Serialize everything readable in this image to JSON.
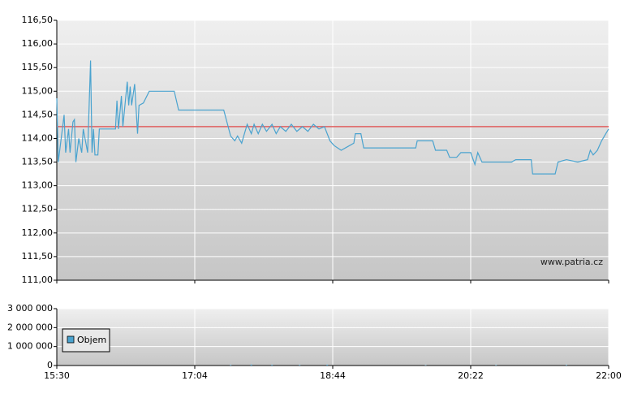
{
  "chart_data": {
    "type": "line",
    "watermark": "www.patria.cz",
    "xlim": [
      "15:30",
      "22:00"
    ],
    "xticks": [
      "15:30",
      "17:04",
      "18:44",
      "20:22",
      "22:00"
    ],
    "ylim": [
      111,
      116.5
    ],
    "yticks": [
      {
        "value": 111,
        "label": "111,00"
      },
      {
        "value": 111.5,
        "label": "111,50"
      },
      {
        "value": 112,
        "label": "112,00"
      },
      {
        "value": 112.5,
        "label": "112,50"
      },
      {
        "value": 113,
        "label": "113,00"
      },
      {
        "value": 113.5,
        "label": "113,50"
      },
      {
        "value": 114,
        "label": "114,00"
      },
      {
        "value": 114.5,
        "label": "114,50"
      },
      {
        "value": 115,
        "label": "115,00"
      },
      {
        "value": 115.5,
        "label": "115,50"
      },
      {
        "value": 116,
        "label": "116,00"
      },
      {
        "value": 116.5,
        "label": "116,50"
      }
    ],
    "grid": true,
    "reference": {
      "value": 114.25,
      "color": "#e06060"
    },
    "series": [
      {
        "color": "#4aa3cf",
        "x": [
          "15:30",
          "15:31",
          "15:33",
          "15:35",
          "15:36",
          "15:38",
          "15:39",
          "15:41",
          "15:42",
          "15:43",
          "15:45",
          "15:47",
          "15:48",
          "15:51",
          "15:53",
          "15:54",
          "15:55",
          "15:56",
          "15:58",
          "15:59",
          "16:10",
          "16:11",
          "16:12",
          "16:14",
          "16:15",
          "16:18",
          "16:19",
          "16:20",
          "16:21",
          "16:23",
          "16:25",
          "16:26",
          "16:29",
          "16:33",
          "16:50",
          "16:53",
          "17:25",
          "17:30",
          "17:33",
          "17:35",
          "17:38",
          "17:40",
          "17:42",
          "17:45",
          "17:47",
          "17:50",
          "17:53",
          "17:56",
          "18:00",
          "18:03",
          "18:06",
          "18:10",
          "18:14",
          "18:18",
          "18:22",
          "18:26",
          "18:30",
          "18:34",
          "18:38",
          "18:42",
          "18:45",
          "18:50",
          "18:56",
          "18:59",
          "19:00",
          "19:04",
          "19:06",
          "19:43",
          "19:44",
          "19:55",
          "19:57",
          "20:05",
          "20:07",
          "20:12",
          "20:15",
          "20:22",
          "20:25",
          "20:27",
          "20:30",
          "20:51",
          "20:54",
          "21:05",
          "21:06",
          "21:22",
          "21:24",
          "21:30",
          "21:38",
          "21:45",
          "21:47",
          "21:49",
          "21:52",
          "21:55",
          "21:58",
          "22:00"
        ],
        "values": [
          114.85,
          113.5,
          114.0,
          114.5,
          113.7,
          114.2,
          113.7,
          114.35,
          114.4,
          113.5,
          114.0,
          113.7,
          114.2,
          113.7,
          115.65,
          113.7,
          114.2,
          113.65,
          113.65,
          114.2,
          114.2,
          114.8,
          114.2,
          114.9,
          114.25,
          115.2,
          114.7,
          115.1,
          114.7,
          115.15,
          114.1,
          114.7,
          114.75,
          115.0,
          115.0,
          114.6,
          114.6,
          114.05,
          113.95,
          114.05,
          113.9,
          114.1,
          114.3,
          114.1,
          114.3,
          114.1,
          114.3,
          114.15,
          114.3,
          114.1,
          114.25,
          114.15,
          114.3,
          114.15,
          114.25,
          114.15,
          114.3,
          114.2,
          114.25,
          113.95,
          113.85,
          113.75,
          113.85,
          113.9,
          114.1,
          114.1,
          113.8,
          113.8,
          113.95,
          113.95,
          113.75,
          113.75,
          113.6,
          113.6,
          113.7,
          113.7,
          113.45,
          113.7,
          113.5,
          113.5,
          113.55,
          113.55,
          113.25,
          113.25,
          113.5,
          113.55,
          113.5,
          113.55,
          113.75,
          113.65,
          113.75,
          113.95,
          114.1,
          114.2
        ]
      }
    ],
    "volume": {
      "name": "Objem",
      "color": "#4aa3cf",
      "ylim": [
        0,
        3000000
      ],
      "yticks": [
        {
          "value": 0,
          "label": "0"
        },
        {
          "value": 1000000,
          "label": "1 000 000"
        },
        {
          "value": 2000000,
          "label": "2 000 000"
        },
        {
          "value": 3000000,
          "label": "3 000 000"
        }
      ],
      "x": [
        "17:30",
        "17:45",
        "18:00",
        "18:20",
        "18:40",
        "19:50",
        "20:40",
        "21:30"
      ],
      "values": [
        30000,
        50000,
        40000,
        30000,
        45000,
        20000,
        25000,
        30000
      ]
    }
  }
}
